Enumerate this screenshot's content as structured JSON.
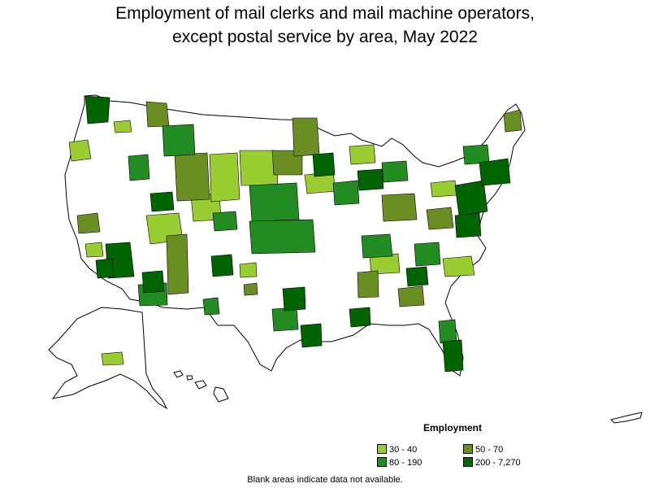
{
  "title": {
    "line1": "Employment of mail clerks and mail machine operators,",
    "line2": "except postal service by area, May 2022"
  },
  "legend": {
    "title": "Employment",
    "items": [
      {
        "label": "30 - 40",
        "color": "#9acd32"
      },
      {
        "label": "50 - 70",
        "color": "#6b8e23"
      },
      {
        "label": "80 - 190",
        "color": "#228b22"
      },
      {
        "label": "200 - 7,270",
        "color": "#006400"
      }
    ]
  },
  "footnote": "Blank areas indicate data not available.",
  "colors": {
    "blank": "#ffffff",
    "border": "#000000"
  }
}
